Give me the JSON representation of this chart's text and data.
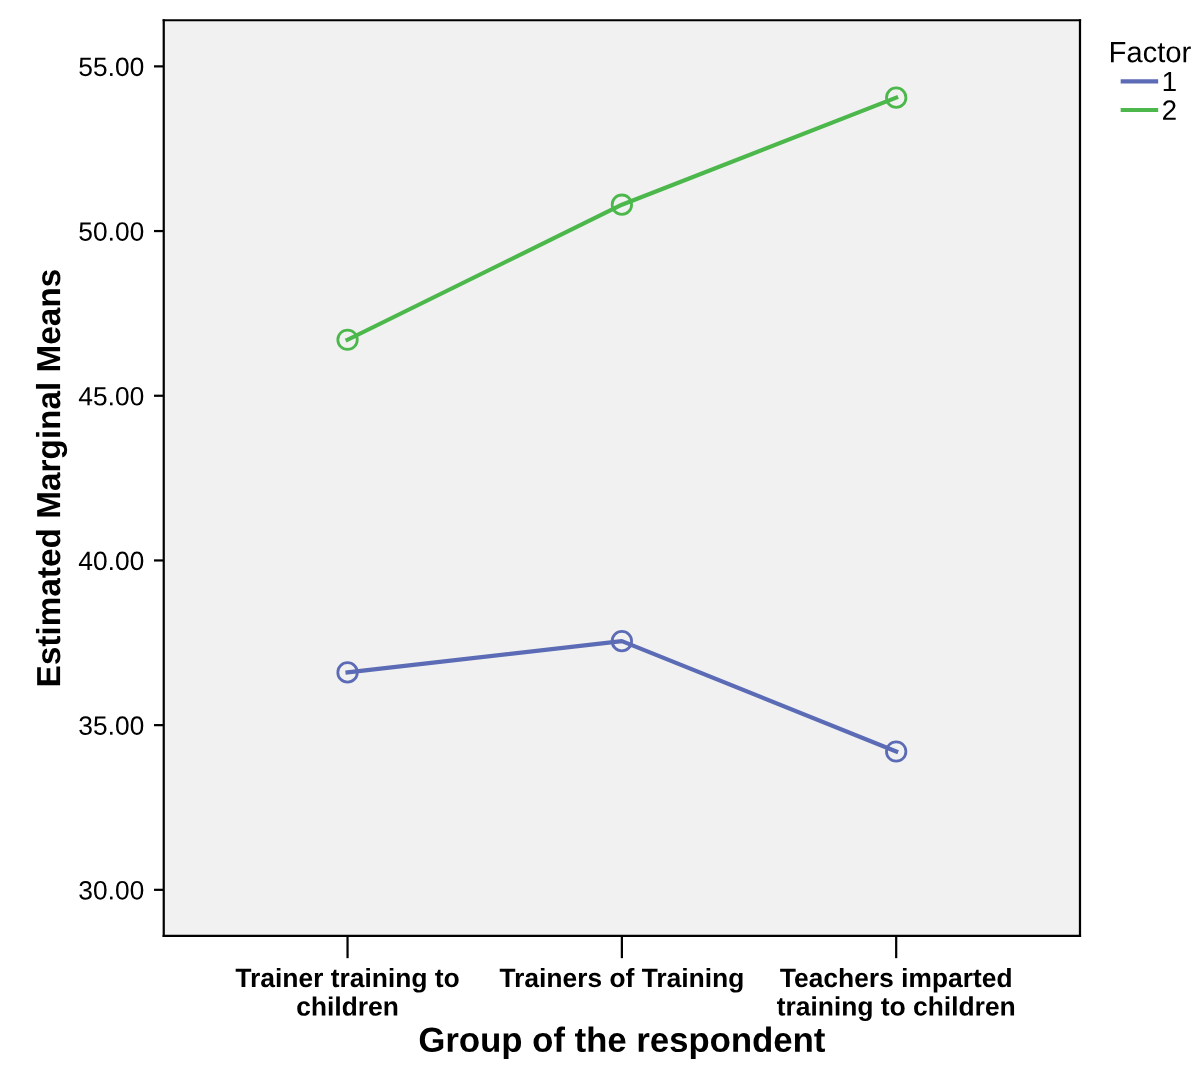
{
  "chart_data": {
    "type": "line",
    "xlabel": "Group of the respondent",
    "ylabel": "Estimated Marginal Means",
    "legend_title": "Factor",
    "categories": [
      "Trainer training to\nchildren",
      "Trainers of Training",
      "Teachers imparted\ntraining to children"
    ],
    "series": [
      {
        "name": "1",
        "color": "#5b6bb5",
        "values": [
          36.6,
          37.55,
          34.2
        ]
      },
      {
        "name": "2",
        "color": "#4cb84c",
        "values": [
          46.7,
          50.8,
          54.05
        ]
      }
    ],
    "ylim": [
      28.6,
      56.4
    ],
    "yticks": [
      {
        "value": 30,
        "label": "30.00"
      },
      {
        "value": 35,
        "label": "35.00"
      },
      {
        "value": 40,
        "label": "40.00"
      },
      {
        "value": 45,
        "label": "45.00"
      },
      {
        "value": 50,
        "label": "50.00"
      },
      {
        "value": 55,
        "label": "55.00"
      }
    ],
    "marker": "circle",
    "legend": "top right",
    "grid": false
  }
}
